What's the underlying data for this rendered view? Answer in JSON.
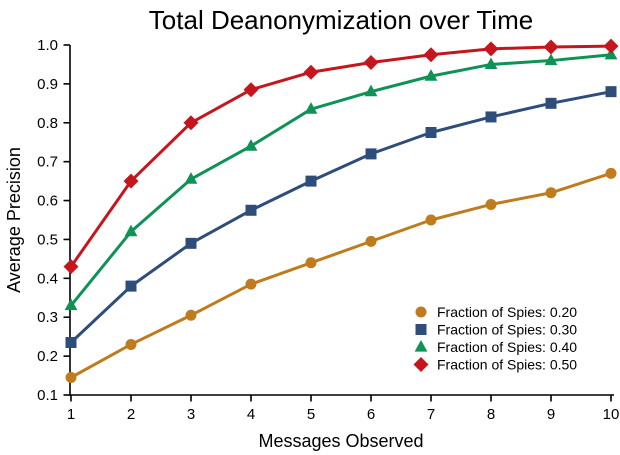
{
  "chart_data": {
    "type": "line",
    "title": "Total Deanonymization over Time",
    "xlabel": "Messages Observed",
    "ylabel": "Average Precision",
    "x": [
      1,
      2,
      3,
      4,
      5,
      6,
      7,
      8,
      9,
      10
    ],
    "xlim": [
      1,
      10
    ],
    "ylim": [
      0.1,
      1.0
    ],
    "x_ticks": [
      1,
      2,
      3,
      4,
      5,
      6,
      7,
      8,
      9,
      10
    ],
    "y_ticks": [
      1.0,
      0.9,
      0.8,
      0.7,
      0.6,
      0.5,
      0.4,
      0.3,
      0.2,
      0.1
    ],
    "grid": false,
    "legend_position": "lower right",
    "axis_color": "#000000",
    "series": [
      {
        "name": "Fraction of Spies: 0.20",
        "marker": "circle",
        "color": "#BE7C1E",
        "values": [
          0.145,
          0.23,
          0.305,
          0.385,
          0.44,
          0.495,
          0.55,
          0.59,
          0.62,
          0.67
        ]
      },
      {
        "name": "Fraction of Spies: 0.30",
        "marker": "square",
        "color": "#2E4D7B",
        "values": [
          0.235,
          0.38,
          0.49,
          0.575,
          0.65,
          0.72,
          0.775,
          0.815,
          0.85,
          0.88
        ]
      },
      {
        "name": "Fraction of Spies: 0.40",
        "marker": "triangle",
        "color": "#0E9255",
        "values": [
          0.33,
          0.52,
          0.655,
          0.74,
          0.835,
          0.88,
          0.92,
          0.95,
          0.96,
          0.975
        ]
      },
      {
        "name": "Fraction of Spies: 0.50",
        "marker": "diamond",
        "color": "#C6161D",
        "values": [
          0.43,
          0.65,
          0.8,
          0.885,
          0.93,
          0.955,
          0.975,
          0.99,
          0.995,
          0.997
        ]
      }
    ]
  }
}
